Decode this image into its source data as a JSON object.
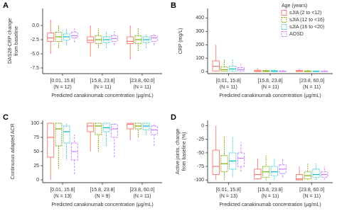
{
  "chart_data": [
    {
      "type": "box",
      "label": "A",
      "ylabel": [
        "DAS28-CRP change",
        "from baseline"
      ],
      "xlabel": "Predicted canakinumab concentration (μg/mL)",
      "categories": [
        "[0.01, 15.8]",
        "[15.8, 23.8]",
        "[23.8, 60.0]"
      ],
      "n_labels": [
        "(N = 12)",
        "(N = 11)",
        "(N = 11)"
      ],
      "ylim": [
        -8.5,
        3
      ],
      "yticks": [
        {
          "value": 0,
          "label": "0.0"
        },
        -2.5,
        {
          "value": -5,
          "label": "-5.0"
        },
        -7.5
      ],
      "series": [
        {
          "color": "#f8766d",
          "values": [
            [
              -5,
              -2.8,
              -2.2,
              -1.3,
              1
            ],
            [
              -5.5,
              -3,
              -2.6,
              -2,
              0
            ],
            [
              -6,
              -3.2,
              -2.8,
              -2,
              0
            ]
          ]
        },
        {
          "color": "#7cae00",
          "values": [
            [
              -4,
              -2.8,
              -2,
              -1.2,
              0
            ],
            [
              -4,
              -3.2,
              -2.5,
              -1.8,
              -0.5
            ],
            [
              -4.5,
              -3.2,
              -2.5,
              -1.8,
              -0.5
            ]
          ]
        },
        {
          "color": "#00bfc4",
          "values": [
            [
              -3.5,
              -2.6,
              -2,
              -1.5,
              -0.5
            ],
            [
              -4,
              -3,
              -2.5,
              -2,
              -1
            ],
            [
              -4,
              -3,
              -2.5,
              -2,
              -1.5
            ]
          ]
        },
        {
          "color": "#c77cff",
          "values": [
            [
              -3,
              -2.2,
              -1.8,
              -1.2,
              -0.5
            ],
            [
              -3.5,
              -2.8,
              -2.3,
              -1.8,
              -1
            ],
            [
              -3.5,
              -2.8,
              -2.2,
              -1.8,
              -1.5
            ]
          ]
        }
      ]
    },
    {
      "type": "box",
      "label": "B",
      "ylabel": "CRP (mg/L)",
      "xlabel": "Predicted canakinumab concentration (μg/mL)",
      "categories": [
        "[0.01, 15.8]",
        "[15.8, 23.8]",
        "[23.8, 60.0]"
      ],
      "n_labels": [
        "(N = 11)",
        "(N = 11)",
        "(N = 11)"
      ],
      "ylim": [
        -15,
        470
      ],
      "yticks": [
        0,
        100,
        200,
        300,
        400
      ],
      "legend_title": "Age (years)",
      "series": [
        {
          "name": "sJIA (2 to <12)",
          "color": "#f8766d",
          "values": [
            [
              0,
              5,
              40,
              80,
              200
            ],
            [
              0,
              1,
              3,
              10,
              25
            ],
            [
              0,
              1,
              3,
              8,
              20
            ]
          ]
        },
        {
          "name": "sJIA (12 to <16)",
          "color": "#7cae00",
          "values": [
            [
              0,
              3,
              15,
              35,
              90
            ],
            [
              0,
              1,
              3,
              8,
              20
            ],
            [
              0,
              1,
              2,
              6,
              15
            ]
          ]
        },
        {
          "name": "sJIA (16 to <20)",
          "color": "#00bfc4",
          "values": [
            [
              0,
              5,
              20,
              40,
              90
            ],
            [
              0,
              1,
              3,
              8,
              20
            ],
            [
              0,
              1,
              2,
              5,
              12
            ]
          ]
        },
        {
          "name": "AOSD",
          "color": "#c77cff",
          "values": [
            [
              0,
              5,
              15,
              30,
              60
            ],
            [
              0,
              1,
              2,
              5,
              12
            ],
            [
              0,
              1,
              2,
              4,
              10
            ]
          ]
        }
      ]
    },
    {
      "type": "box",
      "label": "C",
      "ylabel": "Continuous adapted ACR",
      "xlabel": "Predicted canakinumab concentration (μg/mL)",
      "categories": [
        "[0.01, 15.8]",
        "[15.8, 23.8]",
        "[23.8, 60.0]"
      ],
      "n_labels": [
        "(N = 13)",
        "(N = 9)",
        "(N = 11)"
      ],
      "ylim": [
        -5,
        105
      ],
      "yticks": [
        0,
        25,
        50,
        75,
        100
      ],
      "series": [
        {
          "color": "#f8766d",
          "values": [
            [
              0,
              40,
              75,
              100,
              100
            ],
            [
              50,
              85,
              95,
              100,
              100
            ],
            [
              70,
              90,
              98,
              100,
              100
            ]
          ]
        },
        {
          "color": "#7cae00",
          "values": [
            [
              20,
              60,
              90,
              100,
              100
            ],
            [
              50,
              80,
              95,
              100,
              100
            ],
            [
              75,
              90,
              95,
              100,
              100
            ]
          ]
        },
        {
          "color": "#00bfc4",
          "values": [
            [
              35,
              65,
              85,
              95,
              100
            ],
            [
              60,
              85,
              92,
              100,
              100
            ],
            [
              80,
              88,
              95,
              100,
              100
            ]
          ]
        },
        {
          "color": "#c77cff",
          "values": [
            [
              10,
              35,
              50,
              65,
              80
            ],
            [
              40,
              75,
              90,
              98,
              100
            ],
            [
              60,
              80,
              88,
              95,
              100
            ]
          ]
        }
      ]
    },
    {
      "type": "box",
      "label": "D",
      "ylabel": [
        "Active joints, change",
        "from baseline (%)"
      ],
      "xlabel": "Predicted canakinumab concentration (μg/mL)",
      "categories": [
        "[0.01, 15.8]",
        "[15.8, 23.8]",
        "[23.8, 60.0]"
      ],
      "n_labels": [
        "(N = 13)",
        "(N = 11)",
        "(N = 11)"
      ],
      "ylim": [
        -105,
        10
      ],
      "yticks": [
        -100,
        -75,
        -50,
        -25,
        0
      ],
      "series": [
        {
          "color": "#f8766d",
          "values": [
            [
              -100,
              -90,
              -75,
              -45,
              0
            ],
            [
              -100,
              -98,
              -90,
              -80,
              -60
            ],
            [
              -100,
              -100,
              -98,
              -90,
              -75
            ]
          ]
        },
        {
          "color": "#7cae00",
          "values": [
            [
              -100,
              -85,
              -70,
              -55,
              -20
            ],
            [
              -100,
              -95,
              -85,
              -75,
              -55
            ],
            [
              -100,
              -98,
              -92,
              -85,
              -70
            ]
          ]
        },
        {
          "color": "#00bfc4",
          "values": [
            [
              -95,
              -80,
              -65,
              -50,
              -20
            ],
            [
              -100,
              -92,
              -85,
              -75,
              -60
            ],
            [
              -100,
              -95,
              -90,
              -80,
              -70
            ]
          ]
        },
        {
          "color": "#c77cff",
          "values": [
            [
              -85,
              -75,
              -60,
              -50,
              -30
            ],
            [
              -95,
              -88,
              -80,
              -72,
              -60
            ],
            [
              -100,
              -95,
              -90,
              -85,
              -75
            ]
          ]
        }
      ]
    }
  ]
}
